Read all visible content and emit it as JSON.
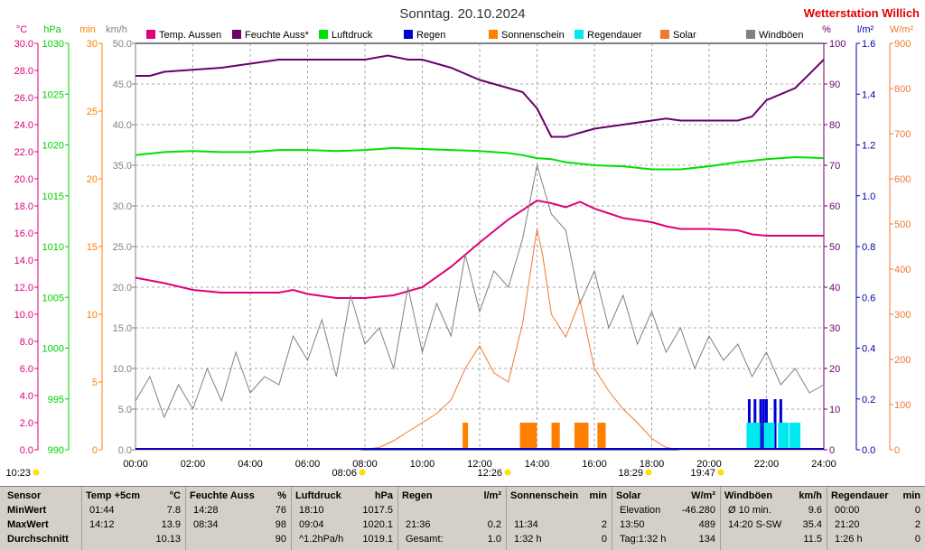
{
  "title": "Sonntag. 20.10.2024",
  "station": "Wetterstation Willich",
  "units": {
    "celsius": "°C",
    "hpa": "hPa",
    "min": "min",
    "kmh": "km/h",
    "percent": "%",
    "lm2": "l/m²",
    "wm2": "W/m²"
  },
  "legend": [
    {
      "label": "Temp. Aussen",
      "color": "#e0007a"
    },
    {
      "label": "Feuchte Auss*",
      "color": "#6a006a"
    },
    {
      "label": "Luftdruck",
      "color": "#00e000"
    },
    {
      "label": "Regen",
      "color": "#0000d0"
    },
    {
      "label": "Sonnenschein",
      "color": "#ff8000"
    },
    {
      "label": "Regendauer",
      "color": "#00e8f0"
    },
    {
      "label": "Solar",
      "color": "#f07830"
    },
    {
      "label": "Windböen",
      "color": "#808080"
    }
  ],
  "axes": {
    "temp_ticks": [
      "30.0",
      "28.0",
      "26.0",
      "24.0",
      "22.0",
      "20.0",
      "18.0",
      "16.0",
      "14.0",
      "12.0",
      "10.0",
      "8.0",
      "6.0",
      "4.0",
      "2.0",
      "0.0"
    ],
    "hpa_ticks": [
      "1030",
      "1025",
      "1020",
      "1015",
      "1010",
      "1005",
      "1000",
      "995",
      "990"
    ],
    "min_ticks": [
      "30",
      "25",
      "20",
      "15",
      "10",
      "5",
      "0"
    ],
    "kmh_ticks": [
      "50.0",
      "45.0",
      "40.0",
      "35.0",
      "30.0",
      "25.0",
      "20.0",
      "15.0",
      "10.0",
      "5.0",
      "0.0"
    ],
    "pct_ticks": [
      "100",
      "90",
      "80",
      "70",
      "60",
      "50",
      "40",
      "30",
      "20",
      "10",
      "0"
    ],
    "lm2_ticks": [
      "1.6",
      "1.4",
      "1.2",
      "1.0",
      "0.8",
      "0.6",
      "0.4",
      "0.2",
      "0.0"
    ],
    "wm2_ticks": [
      "900",
      "800",
      "700",
      "600",
      "500",
      "400",
      "300",
      "200",
      "100",
      "0"
    ],
    "time_ticks": [
      "00:00",
      "02:00",
      "04:00",
      "06:00",
      "08:00",
      "10:00",
      "12:00",
      "14:00",
      "16:00",
      "18:00",
      "20:00",
      "22:00",
      "24:00"
    ]
  },
  "sun_events": [
    "10:23",
    "08:06",
    "12:26",
    "18:29",
    "19:47"
  ],
  "chart_data": {
    "type": "line",
    "x_label": "",
    "x_range": [
      0,
      24
    ],
    "series": [
      {
        "name": "Temp. Aussen",
        "unit": "°C",
        "color": "#e0007a",
        "x": [
          0,
          1,
          2,
          3,
          4,
          5,
          5.5,
          6,
          7,
          8,
          9,
          10,
          11,
          12,
          13,
          14,
          14.5,
          15,
          15.5,
          16,
          17,
          18,
          18.5,
          19,
          20,
          21,
          21.5,
          22,
          23,
          24
        ],
        "y": [
          12.7,
          12.3,
          11.8,
          11.6,
          11.6,
          11.6,
          11.8,
          11.5,
          11.2,
          11.2,
          11.4,
          12.0,
          13.5,
          15.3,
          17.0,
          18.4,
          18.2,
          17.9,
          18.3,
          17.8,
          17.1,
          16.8,
          16.5,
          16.3,
          16.3,
          16.2,
          15.9,
          15.8,
          15.8,
          15.8
        ]
      },
      {
        "name": "Feuchte Auss*",
        "unit": "%",
        "color": "#6a006a",
        "x": [
          0,
          0.5,
          1,
          2,
          3,
          4,
          5,
          6,
          7,
          8,
          8.8,
          9.5,
          10,
          11,
          12,
          13,
          13.5,
          14,
          14.5,
          15,
          15.5,
          16,
          17,
          18,
          18.5,
          19,
          20,
          21,
          21.5,
          22,
          23,
          24
        ],
        "y": [
          92,
          92,
          93,
          93.5,
          94,
          95,
          96,
          96,
          96,
          96,
          97,
          96,
          96,
          94,
          91,
          89,
          88,
          84,
          77,
          77,
          78,
          79,
          80,
          81,
          81.5,
          81,
          81,
          81,
          82,
          86,
          89,
          96
        ]
      },
      {
        "name": "Luftdruck",
        "unit": "hPa",
        "color": "#00e000",
        "x": [
          0,
          1,
          2,
          3,
          4,
          5,
          6,
          7,
          8,
          9,
          10,
          11,
          12,
          13,
          13.5,
          14,
          14.5,
          15,
          16,
          17,
          18,
          19,
          20,
          21,
          22,
          23,
          24
        ],
        "y": [
          1019.0,
          1019.3,
          1019.4,
          1019.3,
          1019.3,
          1019.5,
          1019.5,
          1019.4,
          1019.5,
          1019.7,
          1019.6,
          1019.5,
          1019.4,
          1019.2,
          1019.0,
          1018.7,
          1018.6,
          1018.3,
          1018.0,
          1017.9,
          1017.6,
          1017.6,
          1017.9,
          1018.3,
          1018.6,
          1018.8,
          1018.7
        ]
      },
      {
        "name": "Windböen",
        "unit": "km/h",
        "color": "#808080",
        "x": [
          0,
          0.5,
          1,
          1.5,
          2,
          2.5,
          3,
          3.5,
          4,
          4.5,
          5,
          5.5,
          6,
          6.5,
          7,
          7.5,
          8,
          8.5,
          9,
          9.5,
          10,
          10.5,
          11,
          11.5,
          12,
          12.5,
          13,
          13.5,
          14,
          14.5,
          15,
          15.5,
          16,
          16.5,
          17,
          17.5,
          18,
          18.5,
          19,
          19.5,
          20,
          20.5,
          21,
          21.5,
          22,
          22.5,
          23,
          23.5,
          24
        ],
        "y": [
          6,
          9,
          4,
          8,
          5,
          10,
          6,
          12,
          7,
          9,
          8,
          14,
          11,
          16,
          9,
          19,
          13,
          15,
          10,
          20,
          12,
          18,
          14,
          24,
          17,
          22,
          20,
          26,
          35,
          29,
          27,
          18,
          22,
          15,
          19,
          13,
          17,
          12,
          15,
          10,
          14,
          11,
          13,
          9,
          12,
          8,
          10,
          7,
          8
        ]
      },
      {
        "name": "Solar",
        "unit": "W/m²",
        "color": "#f07830",
        "x": [
          0,
          7.8,
          8.5,
          9,
          9.5,
          10,
          10.5,
          11,
          11.5,
          12,
          12.5,
          13,
          13.5,
          14,
          14.2,
          14.5,
          15,
          15.5,
          16,
          16.5,
          17,
          17.5,
          18,
          18.5,
          19,
          24
        ],
        "y": [
          0,
          0,
          5,
          20,
          40,
          60,
          80,
          110,
          180,
          230,
          170,
          150,
          280,
          489,
          430,
          300,
          250,
          330,
          180,
          130,
          90,
          60,
          25,
          5,
          0,
          0
        ]
      },
      {
        "name": "Sonnenschein",
        "unit": "min",
        "color": "#ff8000",
        "x": [
          11.5,
          13.5,
          13.6,
          13.7,
          13.8,
          13.9,
          14.6,
          14.7,
          15.4,
          15.5,
          15.6,
          15.7,
          16.2,
          16.3
        ],
        "y": [
          2,
          2,
          2,
          2,
          2,
          2,
          2,
          2,
          2,
          2,
          2,
          2,
          2,
          2
        ]
      },
      {
        "name": "Regen",
        "unit": "l/m²",
        "color": "#0000d0",
        "x": [
          21.4,
          21.6,
          21.8,
          21.9,
          22.0,
          22.3,
          22.5
        ],
        "y": [
          0.05,
          0.05,
          0.05,
          0.05,
          0.05,
          0.05,
          0.05
        ]
      },
      {
        "name": "Regendauer",
        "unit": "min",
        "color": "#00e8f0",
        "x": [
          21.4,
          21.5,
          22.0,
          22.5,
          22.9
        ],
        "y": [
          2,
          2,
          2,
          2,
          2
        ]
      }
    ]
  },
  "stats": {
    "rows": [
      "MinWert",
      "MaxWert",
      "Durchschnitt"
    ],
    "row_header": "Sensor",
    "cols": [
      {
        "h1": "Temp +5cm",
        "h2": "°C",
        "r": [
          [
            "01:44",
            "7.8"
          ],
          [
            "14:12",
            "13.9"
          ],
          [
            "",
            "10.13"
          ]
        ]
      },
      {
        "h1": "Feuchte Auss",
        "h2": "%",
        "r": [
          [
            "14:28",
            "76"
          ],
          [
            "08:34",
            "98"
          ],
          [
            "",
            "90"
          ]
        ]
      },
      {
        "h1": "Luftdruck",
        "h2": "hPa",
        "r": [
          [
            "18:10",
            "1017.5"
          ],
          [
            "09:04",
            "1020.1"
          ],
          [
            "^1.2hPa/h",
            "1019.1"
          ]
        ]
      },
      {
        "h1": "Regen",
        "h2": "l/m²",
        "r": [
          [
            "",
            ""
          ],
          [
            "21:36",
            "0.2"
          ],
          [
            "Gesamt:",
            "1.0"
          ]
        ]
      },
      {
        "h1": "Sonnenschein",
        "h2": "min",
        "r": [
          [
            "",
            ""
          ],
          [
            "11:34",
            "2"
          ],
          [
            "1:32 h",
            "0"
          ]
        ]
      },
      {
        "h1": "Solar",
        "h2": "W/m²",
        "r": [
          [
            "Elevation",
            "-46.280"
          ],
          [
            "13:50",
            "489"
          ],
          [
            "Tag:1:32 h",
            "134"
          ]
        ]
      },
      {
        "h1": "Windböen",
        "h2": "km/h",
        "r": [
          [
            "Ø 10 min.",
            "9.6"
          ],
          [
            "14:20   S-SW",
            "35.4"
          ],
          [
            "",
            "11.5"
          ]
        ]
      },
      {
        "h1": "Regendauer",
        "h2": "min",
        "r": [
          [
            "00:00",
            "0"
          ],
          [
            "21:20",
            "2"
          ],
          [
            "1:26 h",
            "0"
          ]
        ]
      }
    ]
  }
}
